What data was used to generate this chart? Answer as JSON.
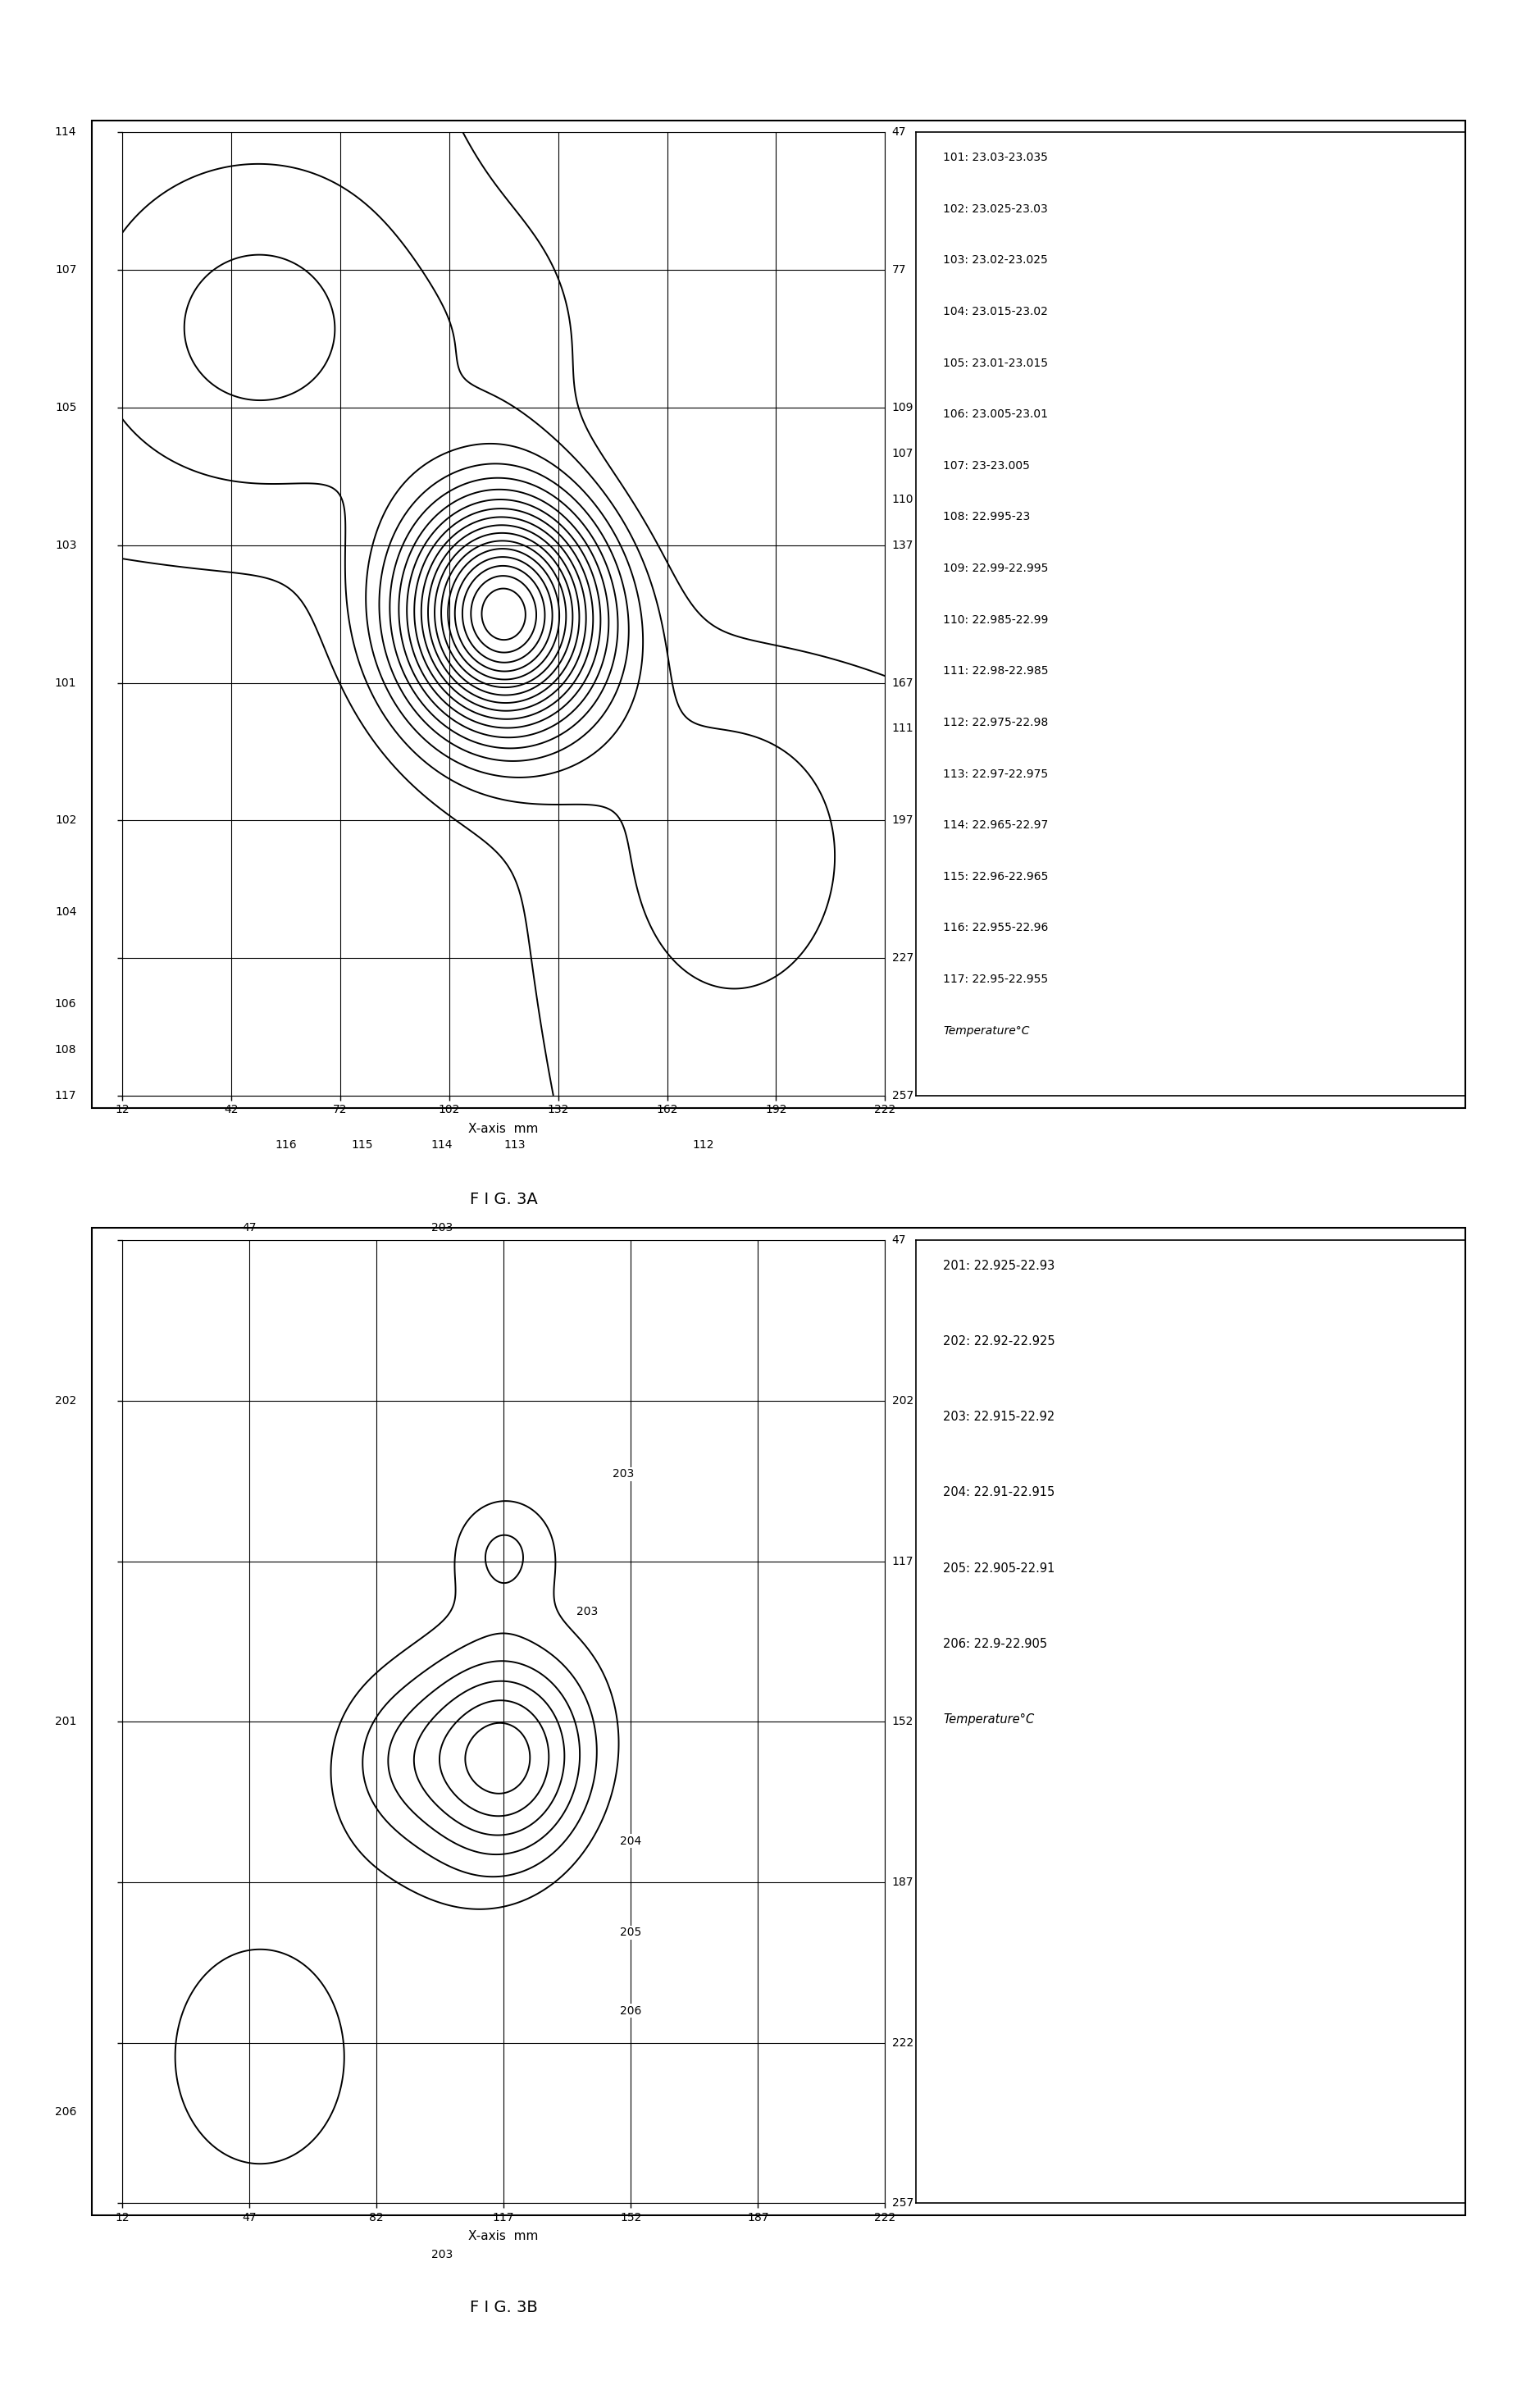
{
  "fig_width": 18.61,
  "fig_height": 29.36,
  "bg": "#ffffff",
  "fig3a_legend": [
    "101: 23.03-23.035",
    "102: 23.025-23.03",
    "103: 23.02-23.025",
    "104: 23.015-23.02",
    "105: 23.01-23.015",
    "106: 23.005-23.01",
    "107: 23-23.005",
    "108: 22.995-23",
    "109: 22.99-22.995",
    "110: 22.985-22.99",
    "111: 22.98-22.985",
    "112: 22.975-22.98",
    "113: 22.97-22.975",
    "114: 22.965-22.97",
    "115: 22.96-22.965",
    "116: 22.955-22.96",
    "117: 22.95-22.955",
    "Temperature°C"
  ],
  "fig3b_legend": [
    "201: 22.925-22.93",
    "202: 22.92-22.925",
    "203: 22.915-22.92",
    "204: 22.91-22.915",
    "205: 22.905-22.91",
    "206: 22.9-22.905",
    "Temperature°C"
  ],
  "fig3a_xticks": [
    12,
    42,
    72,
    102,
    132,
    162,
    192,
    222
  ],
  "fig3a_yticks": [
    47,
    77,
    107,
    137,
    167,
    197,
    227,
    257
  ],
  "fig3b_xticks": [
    12,
    47,
    82,
    117,
    152,
    187,
    222
  ],
  "fig3b_yticks": [
    47,
    82,
    117,
    152,
    187,
    222,
    257
  ],
  "fig3a_left_labels": [
    [
      47,
      "114"
    ],
    [
      77,
      "107"
    ],
    [
      107,
      "105"
    ],
    [
      137,
      "103"
    ],
    [
      167,
      "101"
    ],
    [
      197,
      "102"
    ],
    [
      217,
      "104"
    ],
    [
      237,
      "106"
    ],
    [
      247,
      "108"
    ],
    [
      257,
      "117"
    ]
  ],
  "fig3a_right_labels": [
    [
      47,
      "47"
    ],
    [
      77,
      "77"
    ],
    [
      107,
      "109"
    ],
    [
      117,
      "107"
    ],
    [
      127,
      "110"
    ],
    [
      137,
      "137"
    ],
    [
      167,
      "167"
    ],
    [
      177,
      "111"
    ],
    [
      197,
      "197"
    ],
    [
      227,
      "227"
    ],
    [
      257,
      "257"
    ]
  ],
  "fig3a_extra_bottom": [
    [
      57,
      "116"
    ],
    [
      78,
      "115"
    ],
    [
      100,
      "114"
    ],
    [
      120,
      "113"
    ],
    [
      172,
      "112"
    ]
  ],
  "fig3b_left_labels": [
    [
      82,
      "202"
    ],
    [
      152,
      "201"
    ],
    [
      237,
      "206"
    ]
  ],
  "fig3b_right_labels": [
    [
      47,
      "47"
    ],
    [
      82,
      "202"
    ],
    [
      117,
      "117"
    ],
    [
      152,
      "152"
    ],
    [
      187,
      "187"
    ],
    [
      222,
      "222"
    ],
    [
      257,
      "257"
    ]
  ],
  "fig3b_top_labels": [
    [
      47,
      "47"
    ],
    [
      100,
      "203"
    ]
  ],
  "fig3b_bottom_labels": [
    [
      222,
      "222"
    ],
    [
      187,
      "187"
    ],
    [
      152,
      "152"
    ],
    [
      117,
      "117"
    ],
    [
      82,
      "82"
    ],
    [
      47,
      "47"
    ],
    [
      12,
      "12"
    ]
  ],
  "fig3b_extra_bottom": [
    [
      100,
      "203"
    ]
  ],
  "fig3b_internal": [
    [
      150,
      98,
      "203"
    ],
    [
      140,
      128,
      "203"
    ],
    [
      152,
      178,
      "204"
    ],
    [
      152,
      198,
      "205"
    ],
    [
      152,
      215,
      "206"
    ]
  ]
}
